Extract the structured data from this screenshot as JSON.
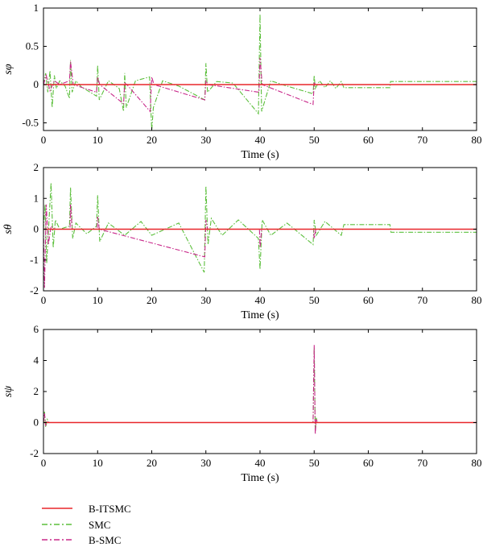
{
  "chart_data": [
    {
      "type": "line",
      "ylabel": "sφ",
      "xlabel": "Time (s)",
      "xlim": [
        0,
        80
      ],
      "ylim": [
        -0.6,
        1
      ],
      "xticks": [
        "0",
        "10",
        "20",
        "30",
        "40",
        "50",
        "60",
        "70",
        "80"
      ],
      "yticks": [
        "-0.5",
        "0",
        "0.5",
        "1"
      ],
      "ytick_values": [
        -0.5,
        0,
        0.5,
        1
      ],
      "series": [
        {
          "name": "B-ITSMC",
          "x": [
            0,
            80
          ],
          "y": [
            0,
            0
          ]
        },
        {
          "name": "SMC",
          "x": [
            0,
            0.4,
            0.8,
            1.2,
            1.6,
            2,
            2.4,
            3,
            4,
            4.8,
            5,
            5.3,
            6,
            7,
            9.8,
            10,
            10.3,
            12,
            14,
            14.8,
            15,
            15.3,
            17,
            19.6,
            20,
            20.3,
            22,
            25,
            29.8,
            30,
            30.3,
            32,
            35,
            39.7,
            40,
            40.3,
            42,
            45,
            49.8,
            50,
            50.2,
            51,
            52,
            53,
            54,
            55,
            55.5,
            64,
            64.1,
            80
          ],
          "y": [
            0,
            0.15,
            -0.1,
            0.18,
            -0.3,
            0.12,
            -0.05,
            0.05,
            -0.02,
            -0.18,
            0.32,
            -0.1,
            0.05,
            -0.03,
            -0.15,
            0.25,
            -0.2,
            0.05,
            -0.05,
            -0.35,
            0.15,
            -0.3,
            0.05,
            0.1,
            -0.6,
            -0.3,
            0.05,
            -0.02,
            -0.2,
            0.28,
            -0.1,
            0.04,
            0.02,
            -0.38,
            0.92,
            -0.35,
            0.05,
            -0.02,
            -0.12,
            0.12,
            -0.05,
            0.05,
            -0.04,
            0.05,
            -0.05,
            0.04,
            -0.04,
            -0.04,
            0.04,
            0.04
          ]
        },
        {
          "name": "B-SMC",
          "x": [
            0,
            0.5,
            1.2,
            2,
            3,
            4.8,
            5,
            5.5,
            9.8,
            10,
            10.4,
            14.8,
            15,
            15.4,
            19.7,
            20,
            20.4,
            29.8,
            30,
            30.4,
            39.8,
            40,
            40.4,
            49.8,
            50,
            50.4,
            80
          ],
          "y": [
            0,
            0.12,
            -0.08,
            0.05,
            0,
            0.05,
            0.3,
            0,
            -0.1,
            0.1,
            0,
            -0.25,
            0.02,
            0,
            -0.35,
            0.1,
            0,
            -0.2,
            0.05,
            0,
            -0.1,
            0.35,
            0,
            -0.26,
            0.02,
            0,
            0
          ]
        }
      ]
    },
    {
      "type": "line",
      "ylabel": "sθ",
      "xlabel": "Time (s)",
      "xlim": [
        0,
        80
      ],
      "ylim": [
        -2,
        2
      ],
      "xticks": [
        "0",
        "10",
        "20",
        "30",
        "40",
        "50",
        "60",
        "70",
        "80"
      ],
      "yticks": [
        "-2",
        "-1",
        "0",
        "1",
        "2"
      ],
      "ytick_values": [
        -2,
        -1,
        0,
        1,
        2
      ],
      "series": [
        {
          "name": "B-ITSMC",
          "x": [
            0,
            80
          ],
          "y": [
            0,
            0
          ]
        },
        {
          "name": "SMC",
          "x": [
            0,
            0.3,
            0.6,
            1,
            1.4,
            1.8,
            2.2,
            3,
            4.8,
            5,
            5.4,
            6,
            8,
            9.8,
            10,
            10.4,
            12,
            15,
            18,
            20,
            25,
            29.7,
            30,
            30.4,
            31,
            33,
            36,
            39.7,
            40,
            40.4,
            42,
            45,
            49.8,
            50,
            50.4,
            52,
            55,
            55.5,
            64,
            64.2,
            80
          ],
          "y": [
            0,
            0.8,
            -1.1,
            0.2,
            1.5,
            -0.6,
            0.3,
            0,
            0.1,
            1.35,
            -0.3,
            0.2,
            -0.15,
            0.1,
            1.1,
            -0.4,
            0.2,
            -0.2,
            0.25,
            -0.2,
            0.2,
            -1.4,
            1.4,
            -0.5,
            0.35,
            -0.2,
            0.3,
            -0.3,
            -1.3,
            0.3,
            -0.2,
            0.2,
            -0.5,
            0.3,
            -0.2,
            0.25,
            -0.2,
            0.15,
            0.15,
            -0.1,
            -0.1
          ]
        },
        {
          "name": "B-SMC",
          "x": [
            0,
            0.2,
            0.5,
            0.9,
            1.4,
            2,
            4.9,
            5,
            5.3,
            9.9,
            10,
            10.3,
            29.8,
            30,
            30.3,
            39.9,
            40,
            40.3,
            49.9,
            50,
            50.3,
            80
          ],
          "y": [
            0,
            -1.9,
            0.8,
            -0.5,
            0.1,
            0,
            0,
            0.8,
            0,
            0,
            0.4,
            0,
            -0.9,
            0.3,
            0,
            0,
            -0.6,
            0,
            0,
            -0.3,
            0,
            0
          ]
        }
      ]
    },
    {
      "type": "line",
      "ylabel": "sψ",
      "xlabel": "Time (s)",
      "xlim": [
        0,
        80
      ],
      "ylim": [
        -2,
        6
      ],
      "xticks": [
        "0",
        "10",
        "20",
        "30",
        "40",
        "50",
        "60",
        "70",
        "80"
      ],
      "yticks": [
        "-2",
        "0",
        "2",
        "4",
        "6"
      ],
      "ytick_values": [
        -2,
        0,
        2,
        4,
        6
      ],
      "series": [
        {
          "name": "B-ITSMC",
          "x": [
            0,
            80
          ],
          "y": [
            0,
            0
          ]
        },
        {
          "name": "SMC",
          "x": [
            0,
            0.2,
            0.4,
            0.7,
            1,
            49.8,
            50,
            50.2,
            50.4,
            50.6,
            80
          ],
          "y": [
            0,
            0.7,
            -0.3,
            0.2,
            0,
            0,
            4.8,
            -0.6,
            0.3,
            0,
            0
          ]
        },
        {
          "name": "B-SMC",
          "x": [
            0,
            0.2,
            0.4,
            0.7,
            1,
            49.8,
            50,
            50.2,
            50.4,
            50.6,
            80
          ],
          "y": [
            0,
            0.6,
            -0.2,
            0.1,
            0,
            0,
            5.0,
            -0.75,
            0.2,
            0,
            0
          ]
        }
      ]
    }
  ],
  "legend": [
    {
      "label": "B-ITSMC",
      "color": "#e8262a",
      "dash": "solid"
    },
    {
      "label": "SMC",
      "color": "#5cbf3c",
      "dash": "dashdot"
    },
    {
      "label": "B-SMC",
      "color": "#c8288a",
      "dash": "dashdot"
    }
  ]
}
